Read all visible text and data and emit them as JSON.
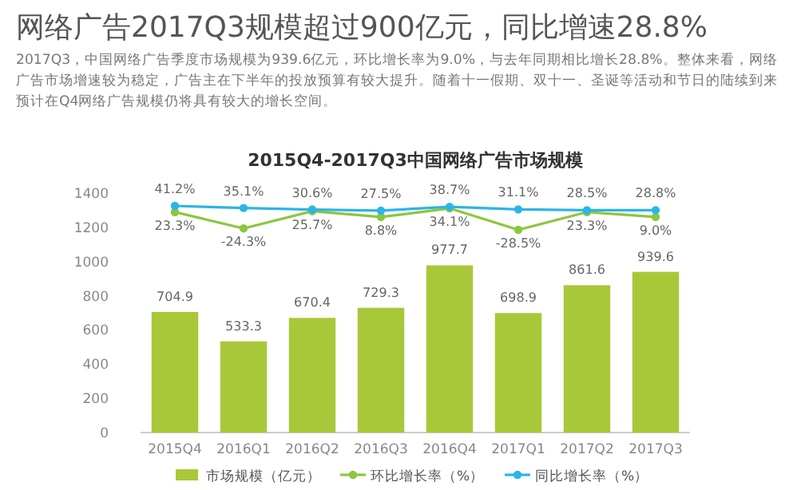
{
  "chart_data": {
    "type": "bar",
    "title": "网络广告2017Q3规模超过900亿元，同比增速28.8%",
    "subtitle": "2017Q3，中国网络广告季度市场规模为939.6亿元，环比增长率为9.0%，与去年同期相比增长28.8%。整体来看，网络广告市场增速较为稳定，广告主在下半年的投放预算有较大提升。随着十一假期、双十一、圣诞等活动和节日的陆续到来预计在Q4网络广告规模仍将具有较大的增长空间。",
    "annotations": [
      "2015Q4-2017Q3中国网络广告市场规模"
    ],
    "categories": [
      "2015Q4",
      "2016Q1",
      "2016Q2",
      "2016Q3",
      "2016Q4",
      "2017Q1",
      "2017Q2",
      "2017Q3"
    ],
    "series": [
      {
        "name": "市场规模（亿元）",
        "color": "#a8c83a",
        "values": [
          704.9,
          533.3,
          670.4,
          729.3,
          977.7,
          698.9,
          861.6,
          939.6
        ],
        "value_labels": [
          "704.9",
          "533.3",
          "670.4",
          "729.3",
          "977.7",
          "698.9",
          "861.6",
          "939.6"
        ]
      },
      {
        "name": "环比增长率（%）",
        "type": "line",
        "axis": "y2",
        "color": "#8cc63f",
        "values": [
          23.3,
          -24.3,
          25.7,
          8.8,
          34.1,
          -28.5,
          23.3,
          9.0
        ],
        "value_labels": [
          "23.3%",
          "-24.3%",
          "25.7%",
          "8.8%",
          "34.1%",
          "-28.5%",
          "23.3%",
          "9.0%"
        ]
      },
      {
        "name": "同比增长率（%）",
        "type": "line",
        "axis": "y2",
        "color": "#2bb5e6",
        "values": [
          41.2,
          35.1,
          30.6,
          27.5,
          38.7,
          31.1,
          28.5,
          28.8
        ],
        "value_labels": [
          "41.2%",
          "35.1%",
          "30.6%",
          "27.5%",
          "38.7%",
          "31.1%",
          "28.5%",
          "28.8%"
        ]
      }
    ],
    "ylim": [
      0,
      1400
    ],
    "yticks": [
      0,
      200,
      400,
      600,
      800,
      1000,
      1200,
      1400
    ],
    "legend": "bottom",
    "marker": "circle",
    "grid": false
  }
}
